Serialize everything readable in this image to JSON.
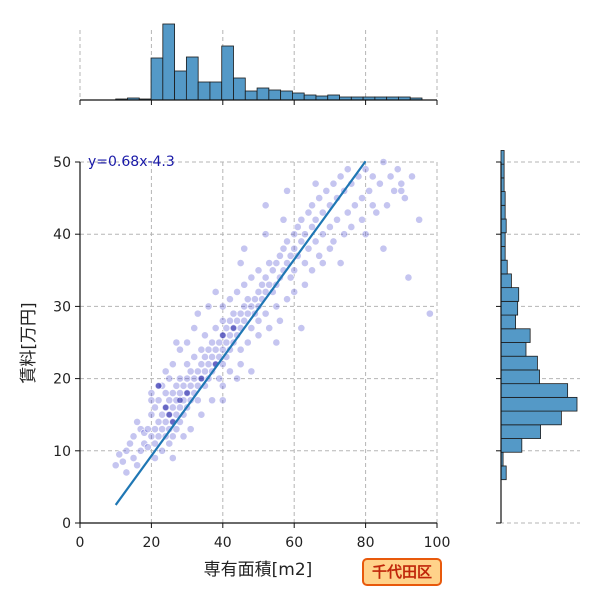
{
  "chart_data": {
    "type": "scatter",
    "xlabel": "専有面積[m2]",
    "ylabel": "賃料[万円]",
    "xlim": [
      0,
      100
    ],
    "ylim": [
      0,
      50
    ],
    "xticks": [
      0,
      20,
      40,
      60,
      80,
      100
    ],
    "yticks": [
      0,
      10,
      20,
      30,
      40,
      50
    ],
    "grid": true,
    "annotation": "y=0.68x-4.3",
    "regression": {
      "slope": 0.68,
      "intercept": -4.3,
      "x_range": [
        10,
        80
      ]
    },
    "marginal_x_hist": {
      "bin_width": 3.3,
      "bins": [
        {
          "x": 10.0,
          "count": 1
        },
        {
          "x": 13.3,
          "count": 2
        },
        {
          "x": 16.6,
          "count": 1
        },
        {
          "x": 19.9,
          "count": 42
        },
        {
          "x": 23.2,
          "count": 76
        },
        {
          "x": 26.5,
          "count": 29
        },
        {
          "x": 29.8,
          "count": 43
        },
        {
          "x": 33.1,
          "count": 18
        },
        {
          "x": 36.4,
          "count": 18
        },
        {
          "x": 39.7,
          "count": 54
        },
        {
          "x": 43.0,
          "count": 22
        },
        {
          "x": 46.3,
          "count": 9
        },
        {
          "x": 49.6,
          "count": 12
        },
        {
          "x": 52.9,
          "count": 10
        },
        {
          "x": 56.2,
          "count": 9
        },
        {
          "x": 59.5,
          "count": 7
        },
        {
          "x": 62.8,
          "count": 5
        },
        {
          "x": 66.1,
          "count": 4
        },
        {
          "x": 69.4,
          "count": 5
        },
        {
          "x": 72.7,
          "count": 3
        },
        {
          "x": 76.0,
          "count": 3
        },
        {
          "x": 79.3,
          "count": 3
        },
        {
          "x": 82.6,
          "count": 3
        },
        {
          "x": 85.9,
          "count": 3
        },
        {
          "x": 89.2,
          "count": 3
        },
        {
          "x": 92.5,
          "count": 2
        }
      ]
    },
    "marginal_y_hist": {
      "bin_width": 1.9,
      "bins": [
        {
          "y": 6.0,
          "count": 5
        },
        {
          "y": 7.9,
          "count": 2
        },
        {
          "y": 9.8,
          "count": 20
        },
        {
          "y": 11.7,
          "count": 38
        },
        {
          "y": 13.6,
          "count": 58
        },
        {
          "y": 15.5,
          "count": 73
        },
        {
          "y": 17.4,
          "count": 64
        },
        {
          "y": 19.3,
          "count": 37
        },
        {
          "y": 21.2,
          "count": 35
        },
        {
          "y": 23.1,
          "count": 24
        },
        {
          "y": 25.0,
          "count": 28
        },
        {
          "y": 26.9,
          "count": 14
        },
        {
          "y": 28.8,
          "count": 16
        },
        {
          "y": 30.7,
          "count": 17
        },
        {
          "y": 32.6,
          "count": 10
        },
        {
          "y": 34.5,
          "count": 6
        },
        {
          "y": 36.4,
          "count": 4
        },
        {
          "y": 38.3,
          "count": 4
        },
        {
          "y": 40.2,
          "count": 5
        },
        {
          "y": 42.1,
          "count": 4
        },
        {
          "y": 44.0,
          "count": 4
        },
        {
          "y": 45.9,
          "count": 3
        },
        {
          "y": 47.8,
          "count": 3
        },
        {
          "y": 49.7,
          "count": 3
        }
      ]
    },
    "scatter_points": [
      [
        10,
        8
      ],
      [
        11,
        9.5
      ],
      [
        12,
        8.5
      ],
      [
        13,
        7
      ],
      [
        13,
        10
      ],
      [
        14,
        11
      ],
      [
        15,
        9
      ],
      [
        15,
        12
      ],
      [
        16,
        8
      ],
      [
        16,
        14
      ],
      [
        17,
        10
      ],
      [
        17,
        13
      ],
      [
        18,
        11
      ],
      [
        18,
        12.5
      ],
      [
        19,
        13
      ],
      [
        19,
        10.5
      ],
      [
        20,
        12
      ],
      [
        20,
        15
      ],
      [
        20,
        18
      ],
      [
        21,
        13
      ],
      [
        21,
        16
      ],
      [
        21,
        11
      ],
      [
        22,
        14
      ],
      [
        22,
        17
      ],
      [
        22,
        12
      ],
      [
        23,
        15
      ],
      [
        23,
        19
      ],
      [
        23,
        13
      ],
      [
        24,
        16
      ],
      [
        24,
        12
      ],
      [
        24,
        18
      ],
      [
        24,
        14
      ],
      [
        25,
        15
      ],
      [
        25,
        17
      ],
      [
        25,
        13
      ],
      [
        25,
        20
      ],
      [
        25,
        11
      ],
      [
        26,
        16
      ],
      [
        26,
        14
      ],
      [
        26,
        18
      ],
      [
        26,
        12
      ],
      [
        27,
        17
      ],
      [
        27,
        15
      ],
      [
        27,
        19
      ],
      [
        27,
        13
      ],
      [
        28,
        16
      ],
      [
        28,
        18
      ],
      [
        28,
        20
      ],
      [
        28,
        14
      ],
      [
        29,
        17
      ],
      [
        29,
        19
      ],
      [
        29,
        15
      ],
      [
        30,
        18
      ],
      [
        30,
        20
      ],
      [
        30,
        16
      ],
      [
        30,
        22
      ],
      [
        31,
        19
      ],
      [
        31,
        17
      ],
      [
        31,
        21
      ],
      [
        32,
        20
      ],
      [
        32,
        18
      ],
      [
        32,
        23
      ],
      [
        33,
        19
      ],
      [
        33,
        21
      ],
      [
        33,
        17
      ],
      [
        34,
        20
      ],
      [
        34,
        22
      ],
      [
        34,
        24
      ],
      [
        35,
        21
      ],
      [
        35,
        19
      ],
      [
        35,
        23
      ],
      [
        35,
        26
      ],
      [
        36,
        22
      ],
      [
        36,
        20
      ],
      [
        36,
        24
      ],
      [
        37,
        23
      ],
      [
        37,
        21
      ],
      [
        37,
        25
      ],
      [
        38,
        24
      ],
      [
        38,
        22
      ],
      [
        38,
        27
      ],
      [
        39,
        25
      ],
      [
        39,
        23
      ],
      [
        39,
        20
      ],
      [
        40,
        26
      ],
      [
        40,
        24
      ],
      [
        40,
        22
      ],
      [
        40,
        28
      ],
      [
        40,
        19
      ],
      [
        40,
        30
      ],
      [
        41,
        25
      ],
      [
        41,
        27
      ],
      [
        41,
        23
      ],
      [
        42,
        26
      ],
      [
        42,
        28
      ],
      [
        42,
        24
      ],
      [
        42,
        31
      ],
      [
        43,
        27
      ],
      [
        43,
        25
      ],
      [
        43,
        29
      ],
      [
        44,
        28
      ],
      [
        44,
        26
      ],
      [
        44,
        32
      ],
      [
        45,
        29
      ],
      [
        45,
        27
      ],
      [
        45,
        24
      ],
      [
        46,
        30
      ],
      [
        46,
        28
      ],
      [
        46,
        33
      ],
      [
        47,
        29
      ],
      [
        47,
        31
      ],
      [
        48,
        30
      ],
      [
        48,
        27
      ],
      [
        48,
        34
      ],
      [
        49,
        31
      ],
      [
        49,
        29
      ],
      [
        50,
        32
      ],
      [
        50,
        30
      ],
      [
        50,
        35
      ],
      [
        50,
        28
      ],
      [
        51,
        33
      ],
      [
        51,
        31
      ],
      [
        52,
        34
      ],
      [
        52,
        32
      ],
      [
        52,
        29
      ],
      [
        53,
        33
      ],
      [
        53,
        36
      ],
      [
        54,
        35
      ],
      [
        54,
        32
      ],
      [
        55,
        36
      ],
      [
        55,
        33
      ],
      [
        55,
        30
      ],
      [
        56,
        37
      ],
      [
        56,
        34
      ],
      [
        57,
        38
      ],
      [
        57,
        35
      ],
      [
        58,
        36
      ],
      [
        58,
        39
      ],
      [
        59,
        37
      ],
      [
        59,
        34
      ],
      [
        60,
        40
      ],
      [
        60,
        38
      ],
      [
        60,
        35
      ],
      [
        61,
        41
      ],
      [
        61,
        37
      ],
      [
        62,
        39
      ],
      [
        62,
        42
      ],
      [
        63,
        40
      ],
      [
        63,
        36
      ],
      [
        64,
        43
      ],
      [
        64,
        38
      ],
      [
        65,
        41
      ],
      [
        65,
        44
      ],
      [
        66,
        42
      ],
      [
        66,
        39
      ],
      [
        67,
        45
      ],
      [
        67,
        37
      ],
      [
        68,
        40
      ],
      [
        68,
        43
      ],
      [
        69,
        46
      ],
      [
        70,
        44
      ],
      [
        70,
        41
      ],
      [
        71,
        47
      ],
      [
        72,
        45
      ],
      [
        72,
        42
      ],
      [
        73,
        48
      ],
      [
        74,
        46
      ],
      [
        75,
        49
      ],
      [
        75,
        43
      ],
      [
        76,
        47
      ],
      [
        77,
        44
      ],
      [
        78,
        48
      ],
      [
        79,
        45
      ],
      [
        80,
        49
      ],
      [
        81,
        46
      ],
      [
        82,
        48
      ],
      [
        83,
        43
      ],
      [
        84,
        47
      ],
      [
        85,
        50
      ],
      [
        86,
        44
      ],
      [
        87,
        48
      ],
      [
        88,
        46
      ],
      [
        89,
        49
      ],
      [
        90,
        47
      ],
      [
        91,
        45
      ],
      [
        92,
        34
      ],
      [
        93,
        48
      ],
      [
        95,
        42
      ],
      [
        98,
        29
      ],
      [
        73,
        36
      ],
      [
        62,
        27
      ],
      [
        55,
        25
      ],
      [
        48,
        21
      ],
      [
        44,
        20
      ],
      [
        38,
        32
      ],
      [
        36,
        30
      ],
      [
        32,
        27
      ],
      [
        30,
        25
      ],
      [
        28,
        24
      ],
      [
        26,
        22
      ],
      [
        24,
        21
      ],
      [
        22,
        19
      ],
      [
        20,
        17
      ],
      [
        27,
        25
      ],
      [
        33,
        29
      ],
      [
        45,
        36
      ],
      [
        52,
        40
      ],
      [
        57,
        42
      ],
      [
        66,
        47
      ],
      [
        70,
        38
      ],
      [
        80,
        40
      ],
      [
        85,
        38
      ],
      [
        90,
        46
      ],
      [
        21,
        9
      ],
      [
        23,
        10
      ],
      [
        26,
        9
      ],
      [
        29,
        12
      ],
      [
        31,
        13
      ],
      [
        34,
        15
      ],
      [
        37,
        17
      ],
      [
        40,
        17
      ],
      [
        42,
        21
      ],
      [
        45,
        22
      ],
      [
        47,
        25
      ],
      [
        50,
        26
      ],
      [
        53,
        27
      ],
      [
        56,
        28
      ],
      [
        58,
        31
      ],
      [
        60,
        32
      ],
      [
        63,
        33
      ],
      [
        65,
        35
      ],
      [
        68,
        36
      ],
      [
        71,
        39
      ],
      [
        74,
        40
      ],
      [
        76,
        41
      ],
      [
        79,
        42
      ],
      [
        82,
        44
      ],
      [
        58,
        46
      ],
      [
        52,
        44
      ],
      [
        46,
        38
      ]
    ]
  }
}
